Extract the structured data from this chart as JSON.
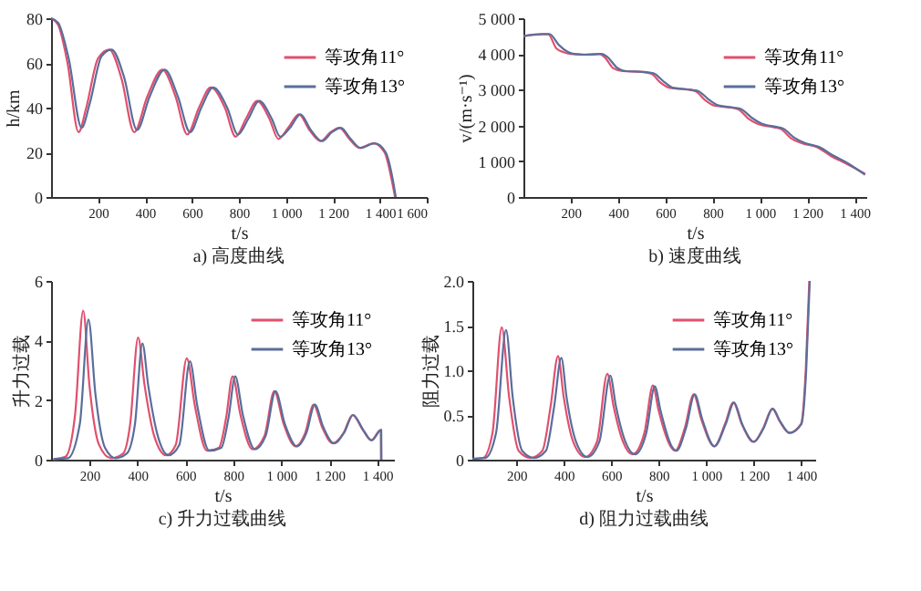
{
  "chart_data": [
    {
      "type": "line",
      "title": "a) 高度曲线",
      "xlabel": "t/s",
      "ylabel": "h/km",
      "xlim": [
        0,
        1600
      ],
      "ylim": [
        0,
        80
      ],
      "xticks": [
        200,
        400,
        600,
        800,
        {
          "value": 1000,
          "label": "1 000"
        },
        {
          "value": 1200,
          "label": "1 200"
        },
        {
          "value": 1400,
          "label": "1 400"
        },
        {
          "value": 1600,
          "label": "1 600"
        }
      ],
      "yticks": [
        0,
        20,
        40,
        60,
        80
      ],
      "legend": "top right",
      "series": [
        {
          "name": "等攻角11°",
          "color": "#e0506e",
          "x": [
            0,
            30,
            70,
            117,
            150,
            200,
            248,
            300,
            354,
            410,
            474,
            530,
            580,
            630,
            680,
            740,
            786,
            830,
            878,
            930,
            968,
            1010,
            1056,
            1100,
            1148,
            1190,
            1228,
            1270,
            1312,
            1373,
            1420,
            1450,
            1465
          ],
          "values": [
            80,
            77,
            60,
            29,
            40,
            62,
            66,
            53,
            29,
            45,
            57,
            45,
            28,
            40,
            49,
            40,
            27,
            35,
            43,
            35,
            26,
            31,
            37,
            30,
            25,
            29,
            31,
            26,
            22,
            24,
            20,
            8,
            0
          ]
        },
        {
          "name": "等攻角13°",
          "color": "#5a6e9a",
          "x": [
            0,
            30,
            75,
            130,
            165,
            215,
            258,
            310,
            366,
            420,
            484,
            540,
            592,
            640,
            690,
            750,
            796,
            840,
            886,
            940,
            976,
            1018,
            1062,
            1106,
            1154,
            1196,
            1234,
            1276,
            1318,
            1378,
            1425,
            1455,
            1468
          ],
          "values": [
            80,
            78,
            62,
            31,
            42,
            63,
            66,
            54,
            30,
            45,
            57,
            45,
            29,
            40,
            49,
            40,
            28,
            35,
            43,
            35,
            27,
            31,
            37,
            30,
            25,
            29,
            31,
            26,
            22,
            24,
            20,
            8,
            0
          ]
        }
      ]
    },
    {
      "type": "line",
      "title": "b) 速度曲线",
      "xlabel": "t/s",
      "ylabel": "v/(m·s⁻¹)",
      "xlim": [
        0,
        1450
      ],
      "ylim": [
        0,
        5000
      ],
      "xticks": [
        200,
        400,
        600,
        800,
        {
          "value": 1000,
          "label": "1 000"
        },
        {
          "value": 1200,
          "label": "1 200"
        },
        {
          "value": 1400,
          "label": "1 400"
        }
      ],
      "yticks": [
        0,
        {
          "value": 1000,
          "label": "1 000"
        },
        {
          "value": 2000,
          "label": "2 000"
        },
        {
          "value": 3000,
          "label": "3 000"
        },
        {
          "value": 4000,
          "label": "4 000"
        },
        {
          "value": 5000,
          "label": "5 000"
        }
      ],
      "legend": "top right",
      "series": [
        {
          "name": "等攻角11°",
          "color": "#e0506e",
          "x": [
            0,
            80,
            105,
            140,
            170,
            200,
            250,
            320,
            345,
            380,
            420,
            500,
            540,
            580,
            620,
            700,
            730,
            770,
            810,
            880,
            910,
            950,
            990,
            1060,
            1090,
            1130,
            1180,
            1240,
            1300,
            1360,
            1445
          ],
          "values": [
            4500,
            4550,
            4550,
            4150,
            4050,
            4000,
            3980,
            4000,
            3900,
            3600,
            3520,
            3500,
            3450,
            3200,
            3050,
            3000,
            2950,
            2700,
            2550,
            2500,
            2450,
            2200,
            2050,
            1950,
            1900,
            1650,
            1500,
            1400,
            1150,
            950,
            650
          ]
        },
        {
          "name": "等攻角13°",
          "color": "#5a6e9a",
          "x": [
            0,
            80,
            110,
            150,
            185,
            215,
            265,
            330,
            355,
            395,
            435,
            510,
            550,
            595,
            635,
            710,
            740,
            785,
            825,
            890,
            920,
            965,
            1005,
            1070,
            1100,
            1145,
            1190,
            1250,
            1310,
            1370,
            1445
          ],
          "values": [
            4500,
            4560,
            4560,
            4250,
            4070,
            4000,
            3980,
            4000,
            3920,
            3620,
            3520,
            3500,
            3460,
            3220,
            3050,
            3000,
            2960,
            2720,
            2560,
            2500,
            2460,
            2220,
            2060,
            1960,
            1910,
            1660,
            1510,
            1400,
            1160,
            950,
            620
          ]
        }
      ]
    },
    {
      "type": "line",
      "title": "c) 升力过载曲线",
      "xlabel": "t/s",
      "ylabel": "升力过载",
      "xlim": [
        40,
        1470
      ],
      "ylim": [
        0,
        6
      ],
      "xticks": [
        200,
        400,
        600,
        800,
        {
          "value": 1000,
          "label": "1 000"
        },
        {
          "value": 1200,
          "label": "1 200"
        },
        {
          "value": 1400,
          "label": "1 400"
        }
      ],
      "yticks": [
        0,
        2,
        4,
        6
      ],
      "legend": "top right",
      "series": [
        {
          "name": "等攻角11°",
          "color": "#e0506e",
          "x": [
            50,
            100,
            140,
            174,
            200,
            240,
            290,
            340,
            370,
            403,
            430,
            470,
            520,
            560,
            606,
            640,
            690,
            740,
            770,
            797,
            830,
            880,
            930,
            971,
            1010,
            1060,
            1100,
            1135,
            1170,
            1215,
            1260,
            1297,
            1340,
            1375,
            1415,
            1416
          ],
          "values": [
            0.02,
            0.1,
            1.5,
            5.0,
            2.5,
            0.5,
            0.05,
            0.2,
            1.2,
            4.1,
            2.5,
            0.8,
            0.15,
            0.5,
            3.4,
            1.8,
            0.3,
            0.4,
            1.4,
            2.8,
            1.5,
            0.35,
            0.8,
            2.3,
            1.2,
            0.45,
            0.9,
            1.85,
            1.1,
            0.55,
            0.9,
            1.5,
            1.0,
            0.65,
            1.0,
            0
          ]
        },
        {
          "name": "等攻角13°",
          "color": "#5a6e9a",
          "x": [
            50,
            110,
            160,
            196,
            225,
            265,
            310,
            355,
            390,
            421,
            445,
            485,
            530,
            575,
            619,
            650,
            700,
            750,
            780,
            808,
            840,
            890,
            935,
            976,
            1015,
            1065,
            1105,
            1140,
            1175,
            1220,
            1262,
            1300,
            1342,
            1377,
            1417,
            1418
          ],
          "values": [
            0.02,
            0.05,
            1.2,
            4.7,
            2.2,
            0.4,
            0.05,
            0.2,
            1.2,
            3.9,
            2.5,
            0.8,
            0.15,
            0.5,
            3.3,
            1.8,
            0.3,
            0.4,
            1.4,
            2.8,
            1.5,
            0.35,
            0.8,
            2.3,
            1.2,
            0.45,
            0.9,
            1.85,
            1.1,
            0.55,
            0.9,
            1.5,
            1.0,
            0.65,
            1.0,
            0
          ]
        }
      ]
    },
    {
      "type": "line",
      "title": "d) 阻力过载曲线",
      "xlabel": "t/s",
      "ylabel": "阻力过载",
      "xlim": [
        15,
        1460
      ],
      "ylim": [
        0,
        2
      ],
      "xticks": [
        200,
        400,
        600,
        800,
        {
          "value": 1000,
          "label": "1 000"
        },
        {
          "value": 1200,
          "label": "1 200"
        },
        {
          "value": 1400,
          "label": "1 400"
        }
      ],
      "yticks": [
        0,
        0.5,
        {
          "value": 1,
          "label": "1.0"
        },
        1.5,
        {
          "value": 2,
          "label": "2.0"
        }
      ],
      "legend": "top right",
      "series": [
        {
          "name": "等攻角11°",
          "color": "#e0506e",
          "x": [
            15,
            60,
            100,
            139,
            170,
            210,
            260,
            310,
            345,
            376,
            400,
            440,
            490,
            540,
            584,
            610,
            650,
            690,
            740,
            776,
            800,
            850,
            870,
            910,
            948,
            980,
            1035,
            1080,
            1115,
            1150,
            1200,
            1240,
            1279,
            1310,
            1350,
            1400,
            1420,
            1435
          ],
          "values": [
            0.01,
            0.02,
            0.3,
            1.48,
            0.7,
            0.1,
            0.02,
            0.1,
            0.6,
            1.16,
            0.7,
            0.2,
            0.03,
            0.2,
            0.96,
            0.6,
            0.2,
            0.06,
            0.3,
            0.83,
            0.55,
            0.15,
            0.1,
            0.35,
            0.73,
            0.45,
            0.15,
            0.4,
            0.64,
            0.4,
            0.2,
            0.35,
            0.57,
            0.43,
            0.3,
            0.4,
            1.0,
            2.0
          ]
        },
        {
          "name": "等攻角13°",
          "color": "#5a6e9a",
          "x": [
            15,
            70,
            115,
            157,
            185,
            225,
            275,
            325,
            360,
            390,
            412,
            452,
            500,
            550,
            596,
            620,
            660,
            700,
            748,
            784,
            808,
            855,
            875,
            915,
            952,
            984,
            1035,
            1083,
            1118,
            1152,
            1202,
            1242,
            1281,
            1312,
            1352,
            1402,
            1422,
            1437
          ],
          "values": [
            0.01,
            0.02,
            0.3,
            1.45,
            0.7,
            0.1,
            0.02,
            0.1,
            0.6,
            1.14,
            0.7,
            0.2,
            0.03,
            0.2,
            0.94,
            0.6,
            0.2,
            0.06,
            0.3,
            0.82,
            0.55,
            0.15,
            0.1,
            0.35,
            0.73,
            0.45,
            0.15,
            0.4,
            0.64,
            0.4,
            0.2,
            0.35,
            0.57,
            0.43,
            0.3,
            0.4,
            1.0,
            2.0
          ]
        }
      ]
    }
  ]
}
